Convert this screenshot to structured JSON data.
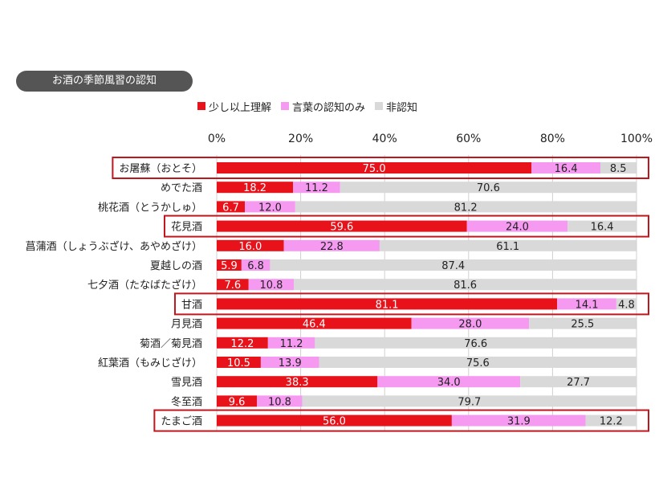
{
  "title": "お酒の季節風習の認知",
  "chart_data": {
    "type": "bar",
    "orientation": "horizontal",
    "stacked": true,
    "title": "お酒の季節風習の認知",
    "xlim": [
      0,
      100
    ],
    "x_ticks": [
      "0%",
      "20%",
      "40%",
      "60%",
      "80%",
      "100%"
    ],
    "legend_position": "top",
    "grid": true,
    "categories": [
      "お屠蘇（おとそ）",
      "めでた酒",
      "桃花酒（とうかしゅ）",
      "花見酒",
      "菖蒲酒（しょうぶざけ、あやめざけ）",
      "夏越しの酒",
      "七夕酒（たなばたざけ）",
      "甘酒",
      "月見酒",
      "菊酒／菊見酒",
      "紅葉酒（もみじざけ）",
      "雪見酒",
      "冬至酒",
      "たまご酒"
    ],
    "highlighted": [
      "お屠蘇（おとそ）",
      "花見酒",
      "甘酒",
      "たまご酒"
    ],
    "series": [
      {
        "name": "少し以上理解",
        "color": "#e8121b",
        "label_color": "#ffffff",
        "values": [
          75.0,
          18.2,
          6.7,
          59.6,
          16.0,
          5.9,
          7.6,
          81.1,
          46.4,
          12.2,
          10.5,
          38.3,
          9.6,
          56.0
        ]
      },
      {
        "name": "言葉の認知のみ",
        "color": "#f59af0",
        "label_color": "#222222",
        "values": [
          16.4,
          11.2,
          12.0,
          24.0,
          22.8,
          6.8,
          10.8,
          14.1,
          28.0,
          11.2,
          13.9,
          34.0,
          10.8,
          31.9
        ]
      },
      {
        "name": "非認知",
        "color": "#d9d9d9",
        "label_color": "#222222",
        "values": [
          8.5,
          70.6,
          81.2,
          16.4,
          61.1,
          87.4,
          81.6,
          4.8,
          25.5,
          76.6,
          75.6,
          27.7,
          79.7,
          12.2
        ]
      }
    ],
    "highlight_color": "#c0161d"
  }
}
